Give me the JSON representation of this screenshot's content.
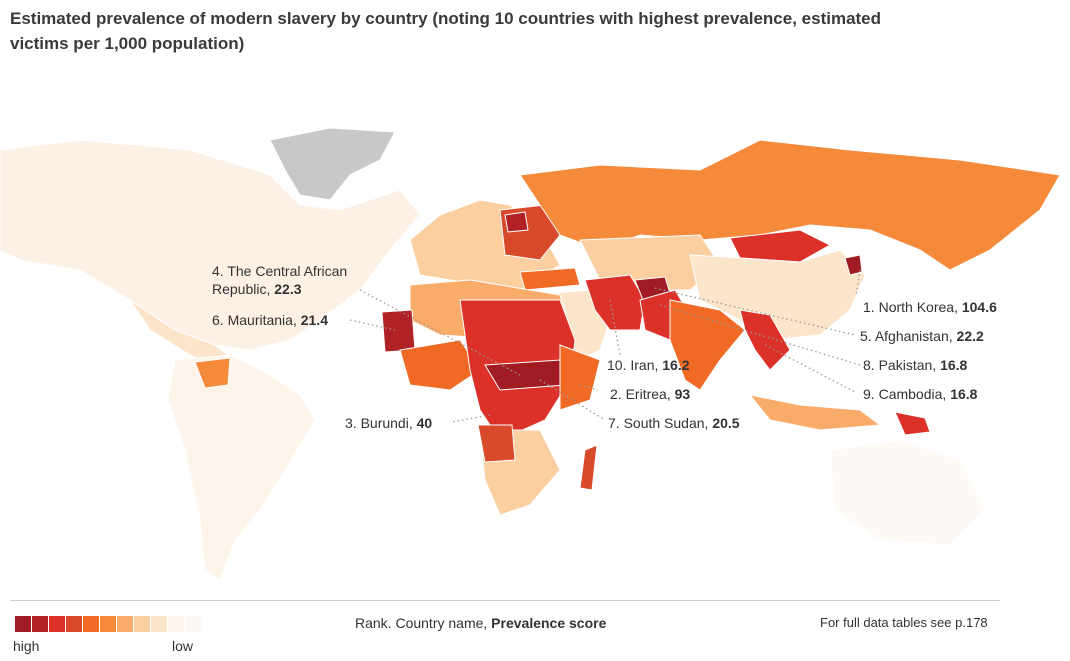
{
  "title": "Estimated prevalence of modern slavery by country (noting 10 countries with highest prevalence, estimated victims per 1,000 population)",
  "legend": {
    "colors": [
      "#a01c22",
      "#b02226",
      "#dc3128",
      "#d84a2a",
      "#f06a25",
      "#f58a3b",
      "#f9ac6a",
      "#fbcfa0",
      "#fde5cc",
      "#fef4ea",
      "#fcf9f5"
    ],
    "high_label": "high",
    "low_label": "low"
  },
  "key": {
    "prefix": "Rank. Country name, ",
    "bold": "Prevalence score"
  },
  "reference": "For full data tables see p.178",
  "countries": [
    {
      "rank": "1.",
      "name": "North Korea",
      "score": "104.6"
    },
    {
      "rank": "2.",
      "name": "Eritrea",
      "score": "93"
    },
    {
      "rank": "3.",
      "name": "Burundi",
      "score": "40"
    },
    {
      "rank": "4.",
      "name": "The Central African Republic",
      "score": "22.3"
    },
    {
      "rank": "5.",
      "name": "Afghanistan",
      "score": "22.2"
    },
    {
      "rank": "6.",
      "name": "Mauritania",
      "score": "21.4"
    },
    {
      "rank": "7.",
      "name": "South Sudan",
      "score": "20.5"
    },
    {
      "rank": "8.",
      "name": "Pakistan",
      "score": "16.8"
    },
    {
      "rank": "9.",
      "name": "Cambodia",
      "score": "16.8"
    },
    {
      "rank": "10.",
      "name": "Iran",
      "score": "16.2"
    }
  ]
}
